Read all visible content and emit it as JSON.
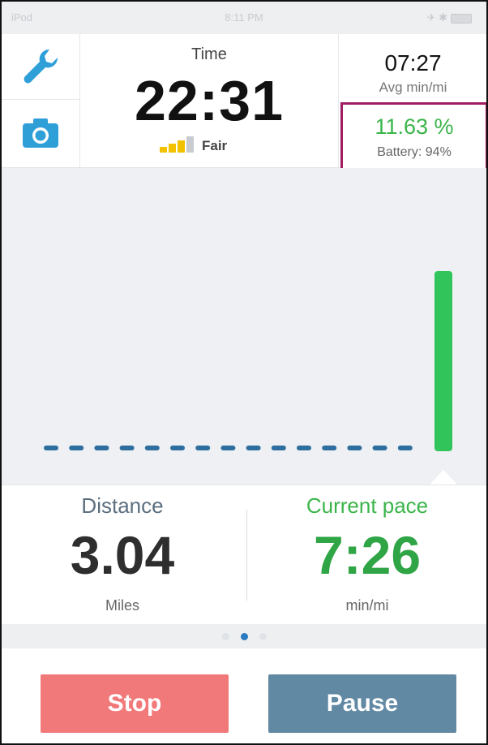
{
  "status_bar": {
    "carrier": "iPod",
    "clock": "8:11 PM"
  },
  "toolbar": {
    "settings_icon": "wrench-icon",
    "camera_icon": "camera-icon"
  },
  "timer": {
    "label": "Time",
    "value": "22:31",
    "signal_label": "Fair"
  },
  "stats": {
    "avg_pace": "07:27",
    "avg_pace_label": "Avg min/mi",
    "percent": "11.63 %",
    "battery_label": "Battery: 94%"
  },
  "chart_data": {
    "type": "bar",
    "dashed_baseline_segments": 15,
    "current_bar_level": 1.0,
    "colors": {
      "baseline": "#2d6e9e",
      "bar": "#31c45a",
      "background": "#eef0f3"
    }
  },
  "distance": {
    "label": "Distance",
    "value": "3.04",
    "unit": "Miles"
  },
  "current_pace": {
    "label": "Current pace",
    "value": "7:26",
    "unit": "min/mi"
  },
  "pager": {
    "count": 3,
    "active_index": 1
  },
  "actions": {
    "stop_label": "Stop",
    "pause_label": "Pause"
  },
  "colors": {
    "accent_green": "#3bb54a",
    "stop": "#f2797a",
    "pause": "#6189a3",
    "highlight_border": "#a01d63"
  }
}
